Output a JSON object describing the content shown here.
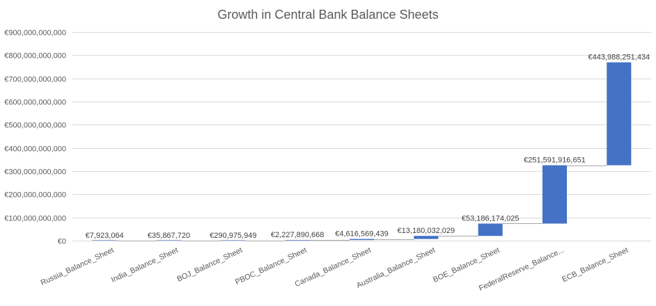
{
  "chart_data": {
    "type": "bar",
    "subtype": "waterfall",
    "title": "Growth in Central Bank Balance Sheets",
    "xlabel": "",
    "ylabel": "",
    "ylim": [
      0,
      900000000000
    ],
    "y_ticks": [
      0,
      100000000000,
      200000000000,
      300000000000,
      400000000000,
      500000000000,
      600000000000,
      700000000000,
      800000000000,
      900000000000
    ],
    "y_tick_labels": [
      "€0",
      "€100,000,000,000",
      "€200,000,000,000",
      "€300,000,000,000",
      "€400,000,000,000",
      "€500,000,000,000",
      "€600,000,000,000",
      "€700,000,000,000",
      "€800,000,000,000",
      "€900,000,000,000"
    ],
    "categories": [
      "Russia_Balance_Sheet",
      "India_Balance_Sheet",
      "BOJ_Balance_Sheet",
      "PBOC_Balance_Sheet",
      "Canada_Balance_Sheet",
      "Australia_Balance_Sheet",
      "BOE_Balance_Sheet",
      "FederalReserve_Balance...",
      "ECB_Balance_Sheet"
    ],
    "values": [
      7923064,
      35867720,
      290975949,
      2227890668,
      4616569439,
      13180032029,
      53186174025,
      251591916651,
      443988251434
    ],
    "value_labels": [
      "€7,923,064",
      "€35,867,720",
      "€290,975,949",
      "€2,227,890,668",
      "€4,616,569,439",
      "€13,180,032,029",
      "€53,186,174,025",
      "€251,591,916,651",
      "€443,988,251,434"
    ],
    "grid": true,
    "legend": "none",
    "colors": {
      "bar": "#4472c4",
      "grid": "#d9d9d9",
      "connector": "#a6a6a6",
      "text": "#595959"
    }
  }
}
